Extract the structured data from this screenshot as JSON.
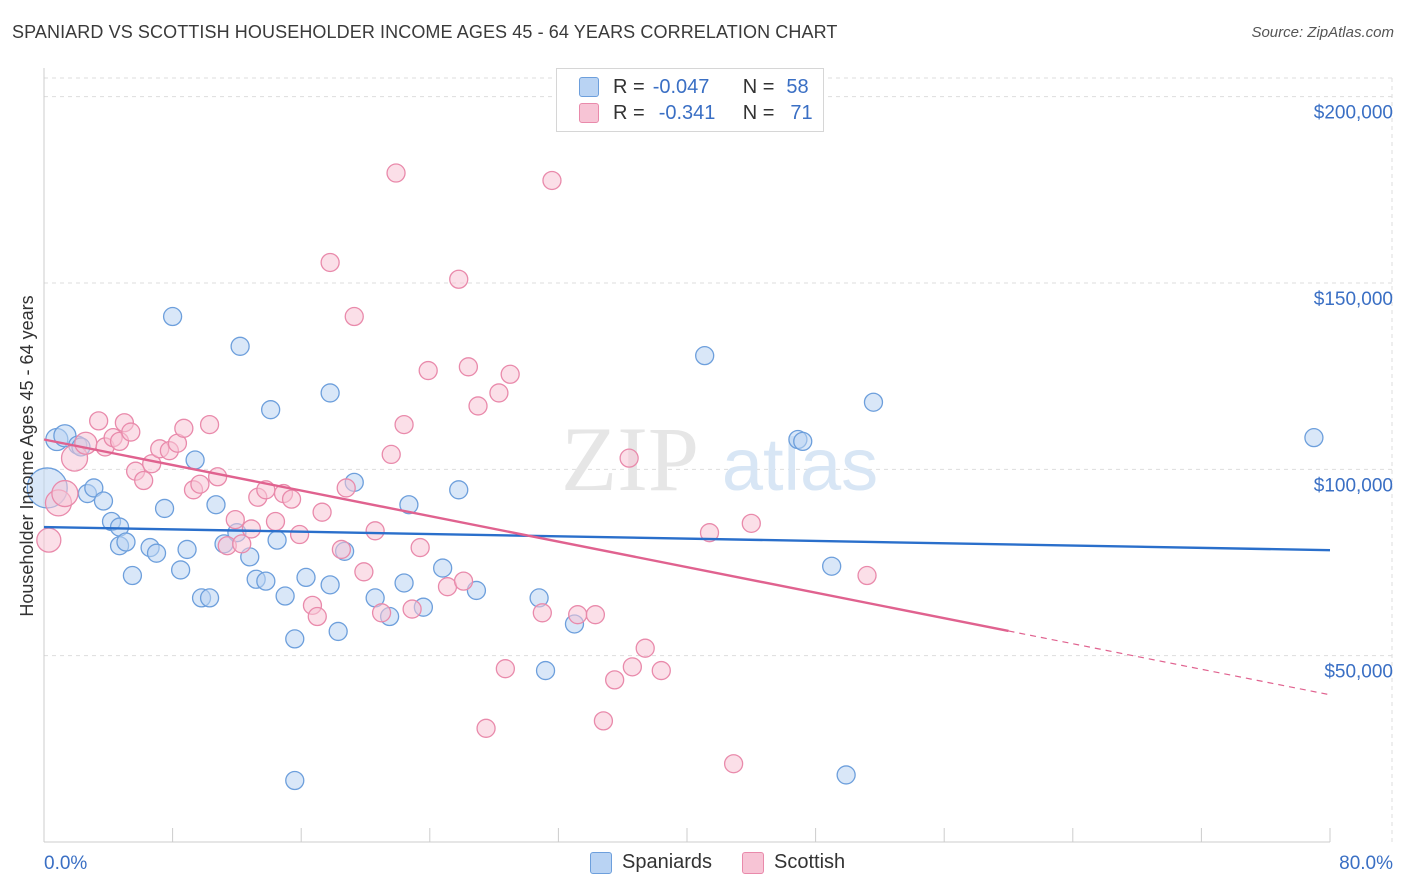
{
  "title": "SPANIARD VS SCOTTISH HOUSEHOLDER INCOME AGES 45 - 64 YEARS CORRELATION CHART",
  "source": "Source: ZipAtlas.com",
  "watermark": {
    "zip": "ZIP",
    "atlas": "atlas"
  },
  "legend": {
    "rows": [
      {
        "r_label": "R =",
        "r_value": "-0.047",
        "n_label": "N =",
        "n_value": "58"
      },
      {
        "r_label": "R =",
        "r_value": "-0.341",
        "n_label": "N =",
        "n_value": "71"
      }
    ]
  },
  "bottom_legend": {
    "spaniards": "Spaniards",
    "scottish": "Scottish"
  },
  "colors": {
    "blue_fill": "#b9d3f3",
    "blue_stroke": "#6d9fdc",
    "blue_line": "#2a6fcb",
    "pink_fill": "#f7c4d5",
    "pink_stroke": "#e98aab",
    "pink_line": "#e0628f",
    "axis_text": "#3a6fc4",
    "grid": "#dddddd"
  },
  "chart_data": {
    "type": "scatter",
    "title": "SPANIARD VS SCOTTISH HOUSEHOLDER INCOME AGES 45 - 64 YEARS CORRELATION CHART",
    "xlabel": "",
    "ylabel": "Householder Income Ages 45 - 64 years",
    "xlim": [
      0,
      80
    ],
    "ylim": [
      0,
      205000
    ],
    "x_tick_labels": [
      "0.0%",
      "80.0%"
    ],
    "y_ticks": [
      50000,
      100000,
      150000,
      200000
    ],
    "y_tick_labels": [
      "$50,000",
      "$100,000",
      "$150,000",
      "$200,000"
    ],
    "series": [
      {
        "name": "Spaniards",
        "r": -0.047,
        "n": 58,
        "trend": {
          "x": [
            0,
            80
          ],
          "y": [
            84500,
            78300
          ],
          "dashed_from": null
        },
        "points": [
          {
            "x": 0.2,
            "y": 95000,
            "size": 20
          },
          {
            "x": 0.8,
            "y": 108000,
            "size": 11
          },
          {
            "x": 1.3,
            "y": 109000,
            "size": 11
          },
          {
            "x": 2.1,
            "y": 106500,
            "size": 9
          },
          {
            "x": 2.7,
            "y": 93500,
            "size": 9
          },
          {
            "x": 3.1,
            "y": 95000,
            "size": 9
          },
          {
            "x": 3.7,
            "y": 91500,
            "size": 9
          },
          {
            "x": 4.2,
            "y": 86000,
            "size": 9
          },
          {
            "x": 4.7,
            "y": 84500,
            "size": 9
          },
          {
            "x": 4.7,
            "y": 79500,
            "size": 9
          },
          {
            "x": 5.1,
            "y": 80500,
            "size": 9
          },
          {
            "x": 5.5,
            "y": 71500,
            "size": 9
          },
          {
            "x": 6.6,
            "y": 79000,
            "size": 9
          },
          {
            "x": 7.0,
            "y": 77500,
            "size": 9
          },
          {
            "x": 7.5,
            "y": 89500,
            "size": 9
          },
          {
            "x": 8.0,
            "y": 141000,
            "size": 9
          },
          {
            "x": 8.5,
            "y": 73000,
            "size": 9
          },
          {
            "x": 8.9,
            "y": 78500,
            "size": 9
          },
          {
            "x": 9.4,
            "y": 102500,
            "size": 9
          },
          {
            "x": 9.8,
            "y": 65500,
            "size": 9
          },
          {
            "x": 10.3,
            "y": 65500,
            "size": 9
          },
          {
            "x": 10.7,
            "y": 90500,
            "size": 9
          },
          {
            "x": 11.2,
            "y": 80000,
            "size": 9
          },
          {
            "x": 12.0,
            "y": 83000,
            "size": 9
          },
          {
            "x": 12.2,
            "y": 133000,
            "size": 9
          },
          {
            "x": 12.8,
            "y": 76500,
            "size": 9
          },
          {
            "x": 13.2,
            "y": 70500,
            "size": 9
          },
          {
            "x": 13.8,
            "y": 70000,
            "size": 9
          },
          {
            "x": 14.1,
            "y": 116000,
            "size": 9
          },
          {
            "x": 14.5,
            "y": 81000,
            "size": 9
          },
          {
            "x": 15.0,
            "y": 66000,
            "size": 9
          },
          {
            "x": 15.6,
            "y": 54500,
            "size": 9
          },
          {
            "x": 16.3,
            "y": 71000,
            "size": 9
          },
          {
            "x": 17.8,
            "y": 69000,
            "size": 9
          },
          {
            "x": 18.3,
            "y": 56500,
            "size": 9
          },
          {
            "x": 18.7,
            "y": 78000,
            "size": 9
          },
          {
            "x": 19.3,
            "y": 96500,
            "size": 9
          },
          {
            "x": 20.6,
            "y": 65500,
            "size": 9
          },
          {
            "x": 21.5,
            "y": 60500,
            "size": 9
          },
          {
            "x": 22.4,
            "y": 69500,
            "size": 9
          },
          {
            "x": 22.7,
            "y": 90500,
            "size": 9
          },
          {
            "x": 23.6,
            "y": 63000,
            "size": 9
          },
          {
            "x": 24.8,
            "y": 73500,
            "size": 9
          },
          {
            "x": 25.8,
            "y": 94500,
            "size": 9
          },
          {
            "x": 26.9,
            "y": 67500,
            "size": 9
          },
          {
            "x": 30.8,
            "y": 65500,
            "size": 9
          },
          {
            "x": 31.2,
            "y": 46000,
            "size": 9
          },
          {
            "x": 33.0,
            "y": 58500,
            "size": 9
          },
          {
            "x": 17.8,
            "y": 120500,
            "size": 9
          },
          {
            "x": 41.1,
            "y": 130500,
            "size": 9
          },
          {
            "x": 46.9,
            "y": 108000,
            "size": 9
          },
          {
            "x": 47.2,
            "y": 107500,
            "size": 9
          },
          {
            "x": 49.0,
            "y": 74000,
            "size": 9
          },
          {
            "x": 49.9,
            "y": 18000,
            "size": 9
          },
          {
            "x": 51.6,
            "y": 118000,
            "size": 9
          },
          {
            "x": 15.6,
            "y": 16500,
            "size": 9
          },
          {
            "x": 79.0,
            "y": 108500,
            "size": 9
          },
          {
            "x": 2.3,
            "y": 106000,
            "size": 9
          }
        ]
      },
      {
        "name": "Scottish",
        "r": -0.341,
        "n": 71,
        "trend": {
          "x": [
            0,
            80
          ],
          "y": [
            108000,
            39500
          ],
          "dashed_from": 60
        },
        "points": [
          {
            "x": 0.3,
            "y": 81000,
            "size": 12
          },
          {
            "x": 0.9,
            "y": 91000,
            "size": 13
          },
          {
            "x": 1.3,
            "y": 93500,
            "size": 13
          },
          {
            "x": 1.9,
            "y": 103000,
            "size": 13
          },
          {
            "x": 2.6,
            "y": 107000,
            "size": 11
          },
          {
            "x": 3.4,
            "y": 113000,
            "size": 9
          },
          {
            "x": 3.8,
            "y": 106000,
            "size": 9
          },
          {
            "x": 4.3,
            "y": 108500,
            "size": 9
          },
          {
            "x": 4.7,
            "y": 107500,
            "size": 9
          },
          {
            "x": 5.0,
            "y": 112500,
            "size": 9
          },
          {
            "x": 5.4,
            "y": 110000,
            "size": 9
          },
          {
            "x": 5.7,
            "y": 99500,
            "size": 9
          },
          {
            "x": 6.2,
            "y": 97000,
            "size": 9
          },
          {
            "x": 6.7,
            "y": 101500,
            "size": 9
          },
          {
            "x": 7.2,
            "y": 105500,
            "size": 9
          },
          {
            "x": 7.8,
            "y": 105000,
            "size": 9
          },
          {
            "x": 8.3,
            "y": 107000,
            "size": 9
          },
          {
            "x": 8.7,
            "y": 111000,
            "size": 9
          },
          {
            "x": 9.3,
            "y": 94500,
            "size": 9
          },
          {
            "x": 9.7,
            "y": 96000,
            "size": 9
          },
          {
            "x": 10.3,
            "y": 112000,
            "size": 9
          },
          {
            "x": 10.8,
            "y": 98000,
            "size": 9
          },
          {
            "x": 11.4,
            "y": 79500,
            "size": 9
          },
          {
            "x": 11.9,
            "y": 86500,
            "size": 9
          },
          {
            "x": 12.3,
            "y": 80000,
            "size": 9
          },
          {
            "x": 12.9,
            "y": 84000,
            "size": 9
          },
          {
            "x": 13.3,
            "y": 92500,
            "size": 9
          },
          {
            "x": 13.8,
            "y": 94500,
            "size": 9
          },
          {
            "x": 14.4,
            "y": 86000,
            "size": 9
          },
          {
            "x": 14.9,
            "y": 93500,
            "size": 9
          },
          {
            "x": 15.4,
            "y": 92000,
            "size": 9
          },
          {
            "x": 15.9,
            "y": 82500,
            "size": 9
          },
          {
            "x": 16.7,
            "y": 63500,
            "size": 9
          },
          {
            "x": 17.0,
            "y": 60500,
            "size": 9
          },
          {
            "x": 17.3,
            "y": 88500,
            "size": 9
          },
          {
            "x": 17.8,
            "y": 155500,
            "size": 9
          },
          {
            "x": 18.5,
            "y": 78500,
            "size": 9
          },
          {
            "x": 18.8,
            "y": 95000,
            "size": 9
          },
          {
            "x": 19.3,
            "y": 141000,
            "size": 9
          },
          {
            "x": 19.9,
            "y": 72500,
            "size": 9
          },
          {
            "x": 20.6,
            "y": 83500,
            "size": 9
          },
          {
            "x": 21.0,
            "y": 61500,
            "size": 9
          },
          {
            "x": 21.6,
            "y": 104000,
            "size": 9
          },
          {
            "x": 21.9,
            "y": 179500,
            "size": 9
          },
          {
            "x": 22.4,
            "y": 112000,
            "size": 9
          },
          {
            "x": 22.9,
            "y": 62500,
            "size": 9
          },
          {
            "x": 23.4,
            "y": 79000,
            "size": 9
          },
          {
            "x": 23.9,
            "y": 126500,
            "size": 9
          },
          {
            "x": 25.1,
            "y": 68500,
            "size": 9
          },
          {
            "x": 25.8,
            "y": 151000,
            "size": 9
          },
          {
            "x": 26.1,
            "y": 70000,
            "size": 9
          },
          {
            "x": 26.4,
            "y": 127500,
            "size": 9
          },
          {
            "x": 27.0,
            "y": 117000,
            "size": 9
          },
          {
            "x": 27.5,
            "y": 30500,
            "size": 9
          },
          {
            "x": 28.3,
            "y": 120500,
            "size": 9
          },
          {
            "x": 29.0,
            "y": 125500,
            "size": 9
          },
          {
            "x": 28.7,
            "y": 46500,
            "size": 9
          },
          {
            "x": 31.0,
            "y": 61500,
            "size": 9
          },
          {
            "x": 31.6,
            "y": 177500,
            "size": 9
          },
          {
            "x": 33.2,
            "y": 61000,
            "size": 9
          },
          {
            "x": 34.3,
            "y": 61000,
            "size": 9
          },
          {
            "x": 34.8,
            "y": 32500,
            "size": 9
          },
          {
            "x": 35.5,
            "y": 43500,
            "size": 9
          },
          {
            "x": 36.6,
            "y": 47000,
            "size": 9
          },
          {
            "x": 36.4,
            "y": 103000,
            "size": 9
          },
          {
            "x": 37.4,
            "y": 52000,
            "size": 9
          },
          {
            "x": 38.4,
            "y": 46000,
            "size": 9
          },
          {
            "x": 41.4,
            "y": 83000,
            "size": 9
          },
          {
            "x": 42.9,
            "y": 21000,
            "size": 9
          },
          {
            "x": 44.0,
            "y": 85500,
            "size": 9
          },
          {
            "x": 51.2,
            "y": 71500,
            "size": 9
          }
        ]
      }
    ]
  }
}
